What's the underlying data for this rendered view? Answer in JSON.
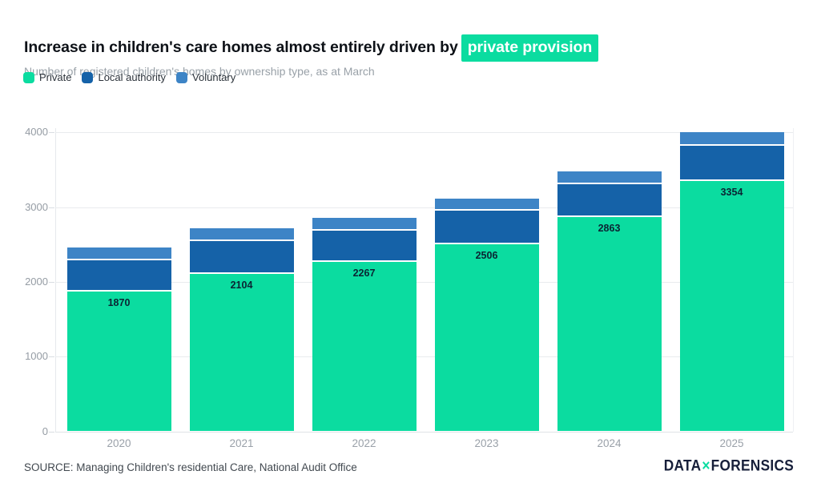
{
  "header": {
    "title_prefix": "Increase in children's care homes almost entirely driven by",
    "title_highlight": "private provision",
    "subtitle": "Number of registered children's homes by ownership type, as at March"
  },
  "colors": {
    "private_green": "#0bdca0",
    "local_authority_blue": "#1562a8",
    "voluntary_blue": "#3d84c6",
    "highlight_bg": "#0bdca0",
    "logo_navy": "#171f3a"
  },
  "legend": {
    "items": [
      {
        "label": "Private",
        "color": "#0bdca0"
      },
      {
        "label": "Local authority",
        "color": "#1562a8"
      },
      {
        "label": "Voluntary",
        "color": "#3d84c6"
      }
    ]
  },
  "chart_data": {
    "type": "bar",
    "stacked": true,
    "title": "Increase in children's care homes almost entirely driven by private provision",
    "subtitle": "Number of registered children's homes by ownership type, as at March",
    "categories": [
      "2020",
      "2021",
      "2022",
      "2023",
      "2024",
      "2025"
    ],
    "series": [
      {
        "name": "Private",
        "color": "#0bdca0",
        "values": [
          1870,
          2104,
          2267,
          2506,
          2863,
          3354
        ]
      },
      {
        "name": "Local authority",
        "color": "#1562a8",
        "values": [
          415,
          440,
          415,
          445,
          440,
          470
        ]
      },
      {
        "name": "Voluntary",
        "color": "#3d84c6",
        "values": [
          170,
          170,
          170,
          160,
          180,
          180
        ]
      }
    ],
    "bar_labels": [
      "1870",
      "2104",
      "2267",
      "2506",
      "2863",
      "3354"
    ],
    "xlabel": "",
    "ylabel": "",
    "ylim": [
      0,
      4000
    ],
    "yticks": [
      "0",
      "1000",
      "2000",
      "3000",
      "4000"
    ],
    "grid": "horizontal",
    "legend_position": "top-left"
  },
  "footer": {
    "source": "SOURCE: Managing Children's residential Care, National Audit Office",
    "logo": {
      "data": "DATA",
      "x": "×",
      "forensics": "FORENSICS"
    }
  }
}
